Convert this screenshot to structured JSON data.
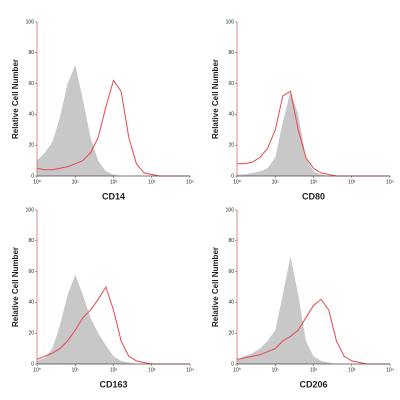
{
  "chart_data": [
    {
      "type": "line",
      "xlabel": "CD14",
      "ylabel": "Relative Cell Number",
      "log_x": true,
      "xlim": [
        1,
        10000
      ],
      "ylim": [
        0,
        100
      ],
      "xticks": [
        {
          "value": 1,
          "label": "10⁰"
        },
        {
          "value": 10,
          "label": "10¹"
        },
        {
          "value": 100,
          "label": "10²"
        },
        {
          "value": 1000,
          "label": "10³"
        },
        {
          "value": 10000,
          "label": "10⁴"
        }
      ],
      "yticks": [
        0,
        20,
        40,
        60,
        80,
        100
      ],
      "x": [
        1,
        1.58,
        2.51,
        3.98,
        6.31,
        10,
        15.8,
        25.1,
        39.8,
        63.1,
        100,
        158,
        251,
        398,
        631,
        1000,
        1585,
        2512,
        3981,
        6310,
        10000
      ],
      "series": [
        {
          "color": "#c8c8c8",
          "filled": true,
          "values": [
            10,
            15,
            22,
            38,
            60,
            72,
            50,
            25,
            10,
            3,
            1,
            0,
            0,
            0,
            0,
            0,
            0,
            0,
            0,
            0,
            0
          ]
        },
        {
          "color": "#e8474c",
          "filled": false,
          "values": [
            5,
            4,
            4,
            5,
            6,
            8,
            10,
            15,
            25,
            45,
            62,
            55,
            25,
            8,
            2,
            1,
            0,
            0,
            0,
            0,
            0
          ]
        }
      ]
    },
    {
      "type": "line",
      "xlabel": "CD80",
      "ylabel": "Relative Cell Number",
      "log_x": true,
      "xlim": [
        1,
        10000
      ],
      "ylim": [
        0,
        100
      ],
      "xticks": [
        {
          "value": 1,
          "label": "10⁰"
        },
        {
          "value": 10,
          "label": "10¹"
        },
        {
          "value": 100,
          "label": "10²"
        },
        {
          "value": 1000,
          "label": "10³"
        },
        {
          "value": 10000,
          "label": "10⁴"
        }
      ],
      "yticks": [
        0,
        20,
        40,
        60,
        80,
        100
      ],
      "x": [
        1,
        1.58,
        2.51,
        3.98,
        6.31,
        10,
        15.8,
        25.1,
        39.8,
        63.1,
        100,
        158,
        251,
        398,
        631,
        1000,
        1585,
        2512,
        3981,
        6310,
        10000
      ],
      "series": [
        {
          "color": "#c8c8c8",
          "filled": true,
          "values": [
            1,
            1,
            2,
            3,
            5,
            12,
            35,
            55,
            40,
            12,
            3,
            1,
            0,
            0,
            0,
            0,
            0,
            0,
            0,
            0,
            0
          ]
        },
        {
          "color": "#e8474c",
          "filled": false,
          "values": [
            8,
            8,
            9,
            12,
            18,
            30,
            52,
            55,
            30,
            12,
            5,
            2,
            1,
            0,
            0,
            0,
            0,
            0,
            0,
            0,
            0
          ]
        }
      ]
    },
    {
      "type": "line",
      "xlabel": "CD163",
      "ylabel": "Relative Cell Number",
      "log_x": true,
      "xlim": [
        1,
        10000
      ],
      "ylim": [
        0,
        100
      ],
      "xticks": [
        {
          "value": 1,
          "label": "10⁰"
        },
        {
          "value": 10,
          "label": "10¹"
        },
        {
          "value": 100,
          "label": "10²"
        },
        {
          "value": 1000,
          "label": "10³"
        },
        {
          "value": 10000,
          "label": "10⁴"
        }
      ],
      "yticks": [
        0,
        20,
        40,
        60,
        80,
        100
      ],
      "x": [
        1,
        1.58,
        2.51,
        3.98,
        6.31,
        10,
        15.8,
        25.1,
        39.8,
        63.1,
        100,
        158,
        251,
        398,
        631,
        1000,
        1585,
        2512,
        3981,
        6310,
        10000
      ],
      "series": [
        {
          "color": "#c8c8c8",
          "filled": true,
          "values": [
            2,
            4,
            10,
            25,
            45,
            58,
            45,
            30,
            20,
            12,
            5,
            2,
            1,
            0,
            0,
            0,
            0,
            0,
            0,
            0,
            0
          ]
        },
        {
          "color": "#e8474c",
          "filled": false,
          "values": [
            3,
            5,
            7,
            10,
            15,
            22,
            30,
            35,
            42,
            50,
            35,
            15,
            5,
            2,
            1,
            0,
            0,
            0,
            0,
            0,
            0
          ]
        }
      ]
    },
    {
      "type": "line",
      "xlabel": "CD206",
      "ylabel": "Relative Cell Number",
      "log_x": true,
      "xlim": [
        1,
        10000
      ],
      "ylim": [
        0,
        100
      ],
      "xticks": [
        {
          "value": 1,
          "label": "10⁰"
        },
        {
          "value": 10,
          "label": "10¹"
        },
        {
          "value": 100,
          "label": "10²"
        },
        {
          "value": 1000,
          "label": "10³"
        },
        {
          "value": 10000,
          "label": "10⁴"
        }
      ],
      "yticks": [
        0,
        20,
        40,
        60,
        80,
        100
      ],
      "x": [
        1,
        1.58,
        2.51,
        3.98,
        6.31,
        10,
        15.8,
        25.1,
        39.8,
        63.1,
        100,
        158,
        251,
        398,
        631,
        1000,
        1585,
        2512,
        3981,
        6310,
        10000
      ],
      "series": [
        {
          "color": "#c8c8c8",
          "filled": true,
          "values": [
            3,
            5,
            7,
            10,
            15,
            22,
            45,
            70,
            45,
            15,
            5,
            2,
            1,
            0,
            0,
            0,
            0,
            0,
            0,
            0,
            0
          ]
        },
        {
          "color": "#e8474c",
          "filled": false,
          "values": [
            3,
            4,
            5,
            6,
            8,
            10,
            15,
            18,
            22,
            30,
            38,
            42,
            35,
            15,
            5,
            2,
            1,
            0,
            0,
            0,
            0
          ]
        }
      ]
    }
  ]
}
